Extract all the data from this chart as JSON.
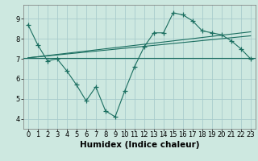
{
  "bg_color": "#cde8e0",
  "grid_color": "#a8cccc",
  "line_color": "#1a6e60",
  "xlabel": "Humidex (Indice chaleur)",
  "xlabel_fontsize": 7.5,
  "tick_fontsize": 6.0,
  "ylim": [
    3.5,
    9.7
  ],
  "xlim": [
    -0.5,
    23.5
  ],
  "yticks": [
    4,
    5,
    6,
    7,
    8,
    9
  ],
  "xticks": [
    0,
    1,
    2,
    3,
    4,
    5,
    6,
    7,
    8,
    9,
    10,
    11,
    12,
    13,
    14,
    15,
    16,
    17,
    18,
    19,
    20,
    21,
    22,
    23
  ],
  "main_data_x": [
    0,
    1,
    2,
    3,
    4,
    5,
    6,
    7,
    8,
    9,
    10,
    11,
    12,
    13,
    14,
    15,
    16,
    17,
    18,
    19,
    20,
    21,
    22,
    23
  ],
  "main_data_y": [
    8.7,
    7.7,
    6.9,
    7.0,
    6.4,
    5.7,
    4.9,
    5.6,
    4.4,
    4.1,
    5.4,
    6.6,
    7.6,
    8.3,
    8.3,
    9.3,
    9.2,
    8.9,
    8.4,
    8.3,
    8.2,
    7.9,
    7.5,
    7.0
  ],
  "trend1_x": [
    0,
    23
  ],
  "trend1_y": [
    7.05,
    8.15
  ],
  "trend2_x": [
    0,
    23
  ],
  "trend2_y": [
    7.05,
    8.35
  ],
  "flat_line_y": 7.05,
  "lw": 0.8,
  "marker_size": 4.0
}
